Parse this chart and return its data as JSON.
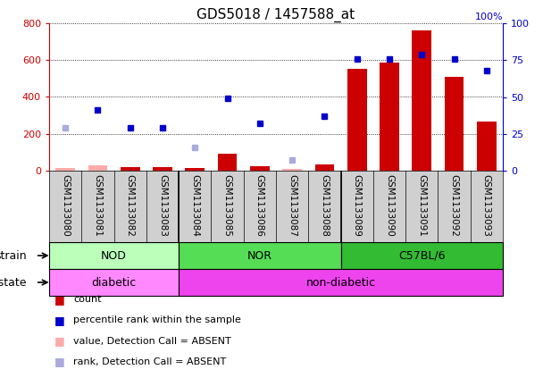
{
  "title": "GDS5018 / 1457588_at",
  "samples": [
    "GSM1133080",
    "GSM1133081",
    "GSM1133082",
    "GSM1133083",
    "GSM1133084",
    "GSM1133085",
    "GSM1133086",
    "GSM1133087",
    "GSM1133088",
    "GSM1133089",
    "GSM1133090",
    "GSM1133091",
    "GSM1133092",
    "GSM1133093"
  ],
  "count_values": [
    15,
    30,
    20,
    20,
    15,
    90,
    25,
    10,
    35,
    555,
    585,
    760,
    510,
    265
  ],
  "count_absent": [
    true,
    true,
    false,
    false,
    false,
    false,
    false,
    true,
    false,
    false,
    false,
    false,
    false,
    false
  ],
  "percentile_values": [
    29,
    41,
    29,
    29,
    16,
    49,
    32,
    7,
    37,
    76,
    76,
    79,
    76,
    68
  ],
  "percentile_absent": [
    true,
    false,
    false,
    false,
    true,
    false,
    false,
    true,
    false,
    false,
    false,
    false,
    false,
    false
  ],
  "count_color_present": "#cc0000",
  "count_color_absent": "#ffaaaa",
  "percentile_color_present": "#0000cc",
  "percentile_color_absent": "#aaaadd",
  "strain_groups": [
    {
      "label": "NOD",
      "start": 0,
      "end": 4,
      "color": "#bbffbb"
    },
    {
      "label": "NOR",
      "start": 4,
      "end": 9,
      "color": "#55dd55"
    },
    {
      "label": "C57BL/6",
      "start": 9,
      "end": 14,
      "color": "#33bb33"
    }
  ],
  "disease_groups": [
    {
      "label": "diabetic",
      "start": 0,
      "end": 4,
      "color": "#ff88ff"
    },
    {
      "label": "non-diabetic",
      "start": 4,
      "end": 14,
      "color": "#ee44ee"
    }
  ],
  "ylim_left": [
    0,
    800
  ],
  "ylim_right": [
    0,
    100
  ],
  "yticks_left": [
    0,
    200,
    400,
    600,
    800
  ],
  "yticks_right": [
    0,
    25,
    50,
    75,
    100
  ],
  "plot_bg_color": "#ffffff",
  "sample_label_bg": "#d0d0d0"
}
